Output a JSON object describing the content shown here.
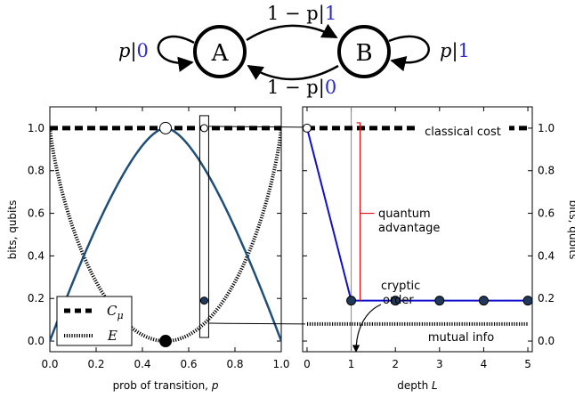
{
  "diagram": {
    "nodes": [
      "A",
      "B"
    ],
    "edges": {
      "self_a": {
        "prob": "p",
        "out": "0"
      },
      "a_to_b": {
        "prob": "1 − p",
        "out": "1"
      },
      "b_to_a": {
        "prob": "1 − p",
        "out": "0"
      },
      "self_b": {
        "prob": "p",
        "out": "1"
      }
    },
    "colors": {
      "output": "#2b2bcc",
      "node_stroke": "#000000"
    }
  },
  "chart_data": [
    {
      "type": "line",
      "xlabel": "prob of transition, p",
      "ylabel": "bits, qubits",
      "xlim": [
        0,
        1
      ],
      "ylim": [
        -0.05,
        1.1
      ],
      "xticks": [
        "0.0",
        "0.2",
        "0.4",
        "0.6",
        "0.8",
        "1.0"
      ],
      "yticks": [
        "0.0",
        "0.2",
        "0.4",
        "0.6",
        "0.8",
        "1.0"
      ],
      "grid": false,
      "legend": {
        "position": "bottom-left",
        "entries": [
          "C_μ",
          "E"
        ]
      },
      "series": [
        {
          "name": "C_μ",
          "style": "dashed",
          "color": "#000000",
          "function": "constant",
          "value": 1.0
        },
        {
          "name": "E",
          "style": "dotted",
          "color": "#000000",
          "function": "1 - h(p)"
        },
        {
          "name": "",
          "style": "solid",
          "color": "#1f4e79",
          "function": "quantum cost"
        }
      ],
      "markers": [
        {
          "x": 0.5,
          "y": 1.0,
          "fill": "open"
        },
        {
          "x": 0.5,
          "y": 0.0,
          "fill": "filled"
        },
        {
          "x": 0.667,
          "y": 1.0,
          "fill": "open"
        },
        {
          "x": 0.667,
          "y": 0.19,
          "fill": "filled"
        }
      ],
      "highlight_p": 0.667
    },
    {
      "type": "line",
      "xlabel": "depth L",
      "ylabel": "bits, qubits",
      "xlim": [
        -0.1,
        5.1
      ],
      "ylim": [
        -0.05,
        1.1
      ],
      "xticks": [
        "0",
        "1",
        "2",
        "3",
        "4",
        "5"
      ],
      "yticks": [
        "0.0",
        "0.2",
        "0.4",
        "0.6",
        "0.8",
        "1.0"
      ],
      "yaxis_side": "right",
      "grid": false,
      "series": [
        {
          "name": "classical cost",
          "style": "dashed",
          "color": "#000000",
          "x": [
            0,
            5
          ],
          "y": [
            1.0,
            1.0
          ]
        },
        {
          "name": "quantum",
          "style": "solid",
          "color": "#1010cc",
          "x": [
            0,
            1,
            2,
            3,
            4,
            5
          ],
          "y": [
            1.0,
            0.19,
            0.19,
            0.19,
            0.19,
            0.19
          ]
        },
        {
          "name": "mutual info",
          "style": "dotted",
          "color": "#000000",
          "x": [
            0,
            5
          ],
          "y": [
            0.08,
            0.08
          ]
        }
      ],
      "annotations": [
        "classical cost",
        "quantum advantage",
        "cryptic order",
        "mutual info"
      ]
    }
  ],
  "labels": {
    "left_ylabel": "bits, qubits",
    "right_ylabel": "bits, qubits",
    "left_xlabel": "prob of transition, p",
    "right_xlabel": "depth L",
    "legend_c": "C_μ",
    "legend_e": "E",
    "classical_cost": "classical cost",
    "quantum_line1": "quantum",
    "quantum_line2": "advantage",
    "cryptic_line1": "cryptic",
    "cryptic_line2": "order",
    "mutual_info": "mutual info"
  }
}
